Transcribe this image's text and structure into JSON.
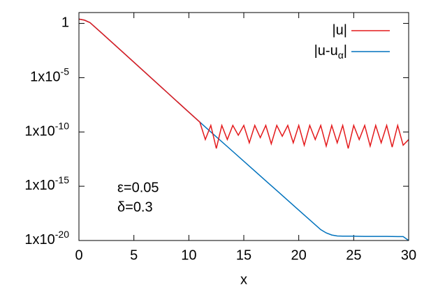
{
  "chart_data": {
    "type": "line",
    "xlabel": "x",
    "log_y": true,
    "legend": "top right",
    "annotations": [
      "ε=0.05",
      "δ=0.3"
    ],
    "xlim": [
      0,
      30
    ],
    "xticks": [
      0,
      5,
      10,
      15,
      20,
      25,
      30
    ],
    "ylim": [
      1e-20,
      10
    ],
    "yticks": [
      {
        "value": 1,
        "label": "1"
      },
      {
        "value": 1e-05,
        "label": "1x10",
        "power": "-5"
      },
      {
        "value": 1e-10,
        "label": "1x10",
        "power": "-10"
      },
      {
        "value": 1e-15,
        "label": "1x10",
        "power": "-15"
      },
      {
        "value": 1e-20,
        "label": "1x10",
        "power": "-20"
      }
    ],
    "series": [
      {
        "name": "|u|",
        "color": "#e41a1c",
        "x": [
          0,
          0.5,
          1,
          2,
          4,
          6,
          8,
          10,
          11,
          11.5,
          12,
          12.5,
          13,
          13.5,
          14,
          14.5,
          15,
          15.5,
          16,
          16.5,
          17,
          17.5,
          18,
          18.5,
          19,
          19.5,
          20,
          20.5,
          21,
          21.5,
          22,
          22.5,
          23,
          23.5,
          24,
          24.5,
          25,
          25.5,
          26,
          26.5,
          27,
          27.5,
          28,
          28.5,
          29,
          29.5,
          30
        ],
        "values": [
          2.5,
          2,
          1.2,
          0.15,
          0.0022,
          3.2e-05,
          4.6e-07,
          6.6e-09,
          8e-10,
          2e-11,
          4e-10,
          3e-12,
          4e-10,
          2e-11,
          4e-10,
          5e-11,
          4e-10,
          1e-11,
          4e-10,
          3e-11,
          4e-10,
          8e-12,
          4e-10,
          4e-11,
          4e-10,
          1e-11,
          4e-10,
          6e-12,
          4e-10,
          2e-11,
          4e-10,
          5e-12,
          4e-10,
          1e-11,
          4e-10,
          3e-12,
          4e-10,
          2e-11,
          4e-10,
          5e-12,
          4e-10,
          1e-11,
          4e-10,
          4e-12,
          4e-10,
          6e-12,
          2e-11
        ]
      },
      {
        "name": "|u-uα|",
        "color": "#0072bd",
        "x": [
          0,
          0.5,
          1,
          2,
          4,
          6,
          8,
          10,
          12,
          14,
          16,
          18,
          20,
          22,
          22.5,
          23,
          23.5,
          24,
          25,
          26,
          27,
          28,
          29,
          29.5,
          30
        ],
        "values": [
          2.5,
          2,
          1.2,
          0.15,
          0.0022,
          3.2e-05,
          4.6e-07,
          6.6e-09,
          1e-10,
          1.6e-12,
          2.5e-14,
          4e-16,
          6.3e-18,
          1e-19,
          5e-20,
          3.2e-20,
          2.6e-20,
          2.5e-20,
          2.5e-20,
          2.4e-20,
          2.4e-20,
          2.4e-20,
          2.3e-20,
          2.3e-20,
          1e-20
        ]
      }
    ]
  }
}
